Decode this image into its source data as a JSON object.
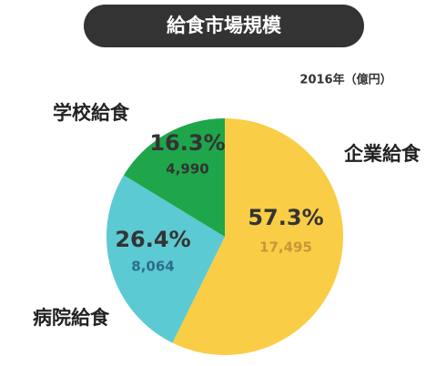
{
  "chart_data": {
    "type": "pie",
    "title": "給食市場規模",
    "subtitle": "2016年（億円）",
    "categories": [
      "企業給食",
      "病院給食",
      "学校給食"
    ],
    "values": [
      57.3,
      26.4,
      16.3
    ],
    "value_labels": [
      "57.3%",
      "26.4%",
      "16.3%"
    ],
    "amounts": [
      17495,
      8064,
      4990
    ],
    "amount_labels": [
      "17,495",
      "8,064",
      "4,990"
    ],
    "colors": [
      "#f9cd45",
      "#5ccad3",
      "#1fa64b"
    ]
  }
}
